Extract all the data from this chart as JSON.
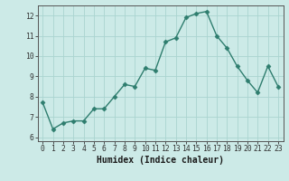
{
  "x": [
    0,
    1,
    2,
    3,
    4,
    5,
    6,
    7,
    8,
    9,
    10,
    11,
    12,
    13,
    14,
    15,
    16,
    17,
    18,
    19,
    20,
    21,
    22,
    23
  ],
  "y": [
    7.7,
    6.4,
    6.7,
    6.8,
    6.8,
    7.4,
    7.4,
    8.0,
    8.6,
    8.5,
    9.4,
    9.3,
    10.7,
    10.9,
    11.9,
    12.1,
    12.2,
    11.0,
    10.4,
    9.5,
    8.8,
    8.2,
    9.5,
    8.5
  ],
  "line_color": "#2e7d6e",
  "marker": "D",
  "markersize": 2.5,
  "linewidth": 1.0,
  "background_color": "#cceae7",
  "grid_color": "#aad4d0",
  "xlabel": "Humidex (Indice chaleur)",
  "xlabel_fontsize": 7,
  "xlim": [
    -0.5,
    23.5
  ],
  "ylim": [
    5.8,
    12.5
  ],
  "yticks": [
    6,
    7,
    8,
    9,
    10,
    11,
    12
  ],
  "xticks": [
    0,
    1,
    2,
    3,
    4,
    5,
    6,
    7,
    8,
    9,
    10,
    11,
    12,
    13,
    14,
    15,
    16,
    17,
    18,
    19,
    20,
    21,
    22,
    23
  ],
  "tick_fontsize": 5.8,
  "spine_color": "#555555"
}
